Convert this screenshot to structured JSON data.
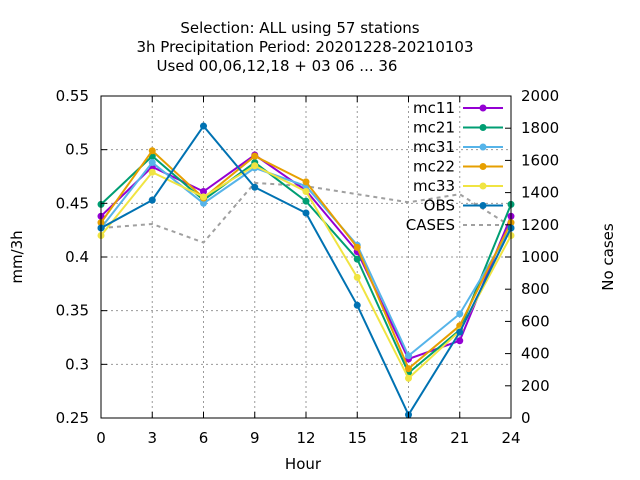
{
  "chart_data": {
    "type": "line",
    "title_lines": [
      "Selection: ALL using    57 stations",
      "3h Precipitation   Period: 20201228-20210103",
      "Used  00,06,12,18 + 03 06 ... 36"
    ],
    "xlabel": "Hour",
    "ylabel": "mm/3h",
    "y2label": "No cases",
    "x": [
      0,
      3,
      6,
      9,
      12,
      15,
      18,
      21,
      24
    ],
    "xticks": [
      "0",
      "3",
      "6",
      "9",
      "12",
      "15",
      "18",
      "21",
      "24"
    ],
    "xlim": [
      0,
      24
    ],
    "ylim": [
      0.25,
      0.55
    ],
    "yticks": [
      "0.25",
      "0.3",
      "0.35",
      "0.4",
      "0.45",
      "0.5",
      "0.55"
    ],
    "y2lim": [
      0,
      2000
    ],
    "y2ticks": [
      "0",
      "200",
      "400",
      "600",
      "800",
      "1000",
      "1200",
      "1400",
      "1600",
      "1800",
      "2000"
    ],
    "grid": true,
    "legend_position": "top-right",
    "series": [
      {
        "name": "mc11",
        "color": "#9400d3",
        "values": [
          0.438,
          0.484,
          0.461,
          0.495,
          0.462,
          0.405,
          0.305,
          0.322,
          0.438
        ]
      },
      {
        "name": "mc21",
        "color": "#009e73",
        "values": [
          0.449,
          0.494,
          0.453,
          0.488,
          0.452,
          0.398,
          0.292,
          0.332,
          0.449
        ]
      },
      {
        "name": "mc31",
        "color": "#56b4e9",
        "values": [
          0.427,
          0.488,
          0.45,
          0.483,
          0.466,
          0.411,
          0.308,
          0.347,
          0.427
        ]
      },
      {
        "name": "mc22",
        "color": "#e69f00",
        "values": [
          0.432,
          0.499,
          0.455,
          0.494,
          0.47,
          0.409,
          0.296,
          0.336,
          0.432
        ]
      },
      {
        "name": "mc33",
        "color": "#f0e442",
        "values": [
          0.42,
          0.479,
          0.456,
          0.485,
          0.461,
          0.381,
          0.287,
          0.331,
          0.42
        ]
      },
      {
        "name": "OBS",
        "color": "#0072b2",
        "values": [
          0.427,
          0.453,
          0.522,
          0.465,
          0.441,
          0.355,
          0.253,
          0.33,
          0.427
        ]
      }
    ],
    "cases": {
      "name": "CASES",
      "color": "#a0a0a0",
      "axis": "y2",
      "values": [
        1180,
        1205,
        1090,
        1460,
        1440,
        1390,
        1340,
        1390,
        1190
      ]
    }
  }
}
